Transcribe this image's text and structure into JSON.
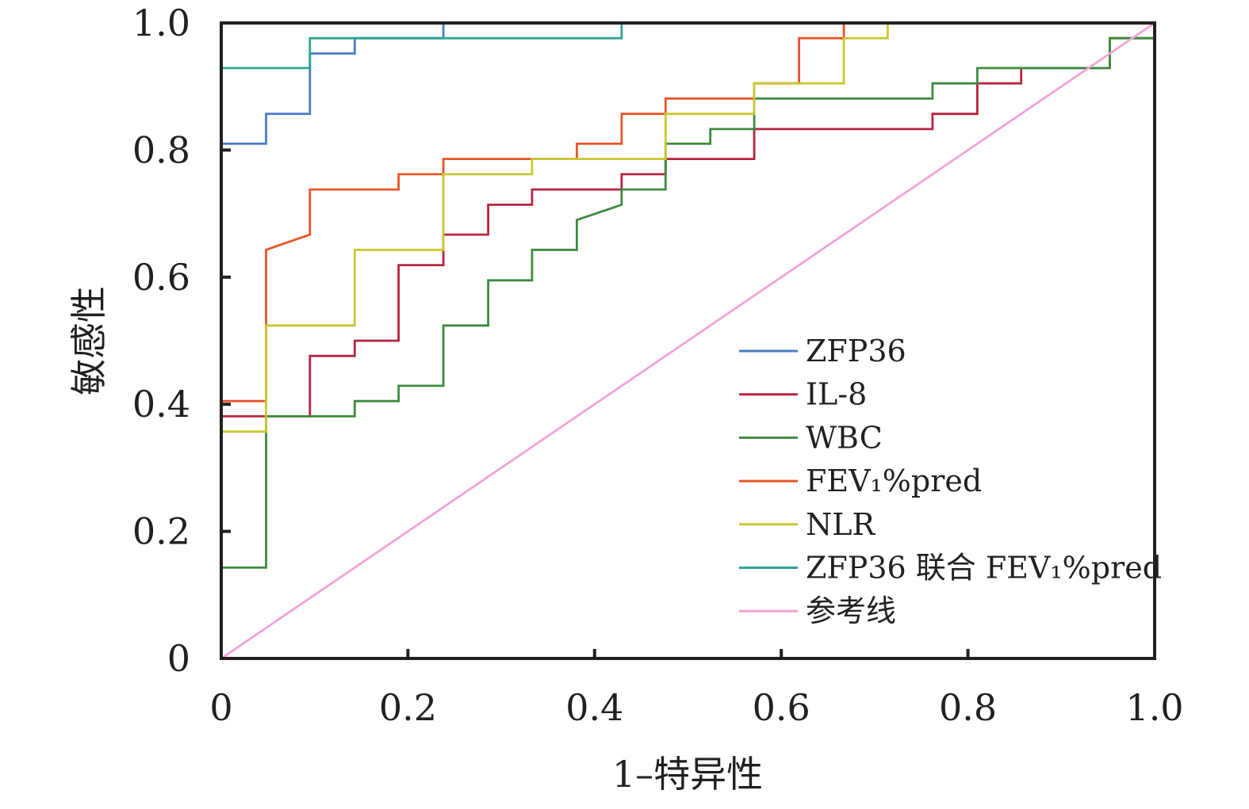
{
  "chart_data": {
    "type": "line",
    "title": "",
    "xlabel": "1–特异性",
    "ylabel": "敏感性",
    "xlim": [
      0,
      1
    ],
    "ylim": [
      0,
      1
    ],
    "x_ticks": [
      "0",
      "0.2",
      "0.4",
      "0.6",
      "0.8",
      "1.0"
    ],
    "y_ticks": [
      "0",
      "0.2",
      "0.4",
      "0.6",
      "0.8",
      "1.0"
    ],
    "grid": false,
    "legend_position": "bottom-right",
    "series": [
      {
        "name": "ZFP36",
        "color": "#4a7ec4",
        "points": [
          [
            0,
            0
          ],
          [
            0,
            0.81
          ],
          [
            0.048,
            0.81
          ],
          [
            0.048,
            0.857
          ],
          [
            0.095,
            0.857
          ],
          [
            0.095,
            0.952
          ],
          [
            0.143,
            0.952
          ],
          [
            0.143,
            0.976
          ],
          [
            0.238,
            0.976
          ],
          [
            0.238,
            1
          ],
          [
            1,
            1
          ]
        ]
      },
      {
        "name": "IL-8",
        "color": "#b5253f",
        "points": [
          [
            0,
            0
          ],
          [
            0,
            0.381
          ],
          [
            0.095,
            0.381
          ],
          [
            0.095,
            0.476
          ],
          [
            0.143,
            0.476
          ],
          [
            0.143,
            0.5
          ],
          [
            0.19,
            0.5
          ],
          [
            0.19,
            0.619
          ],
          [
            0.238,
            0.619
          ],
          [
            0.238,
            0.667
          ],
          [
            0.286,
            0.667
          ],
          [
            0.286,
            0.714
          ],
          [
            0.333,
            0.714
          ],
          [
            0.333,
            0.738
          ],
          [
            0.429,
            0.738
          ],
          [
            0.429,
            0.762
          ],
          [
            0.476,
            0.762
          ],
          [
            0.476,
            0.786
          ],
          [
            0.571,
            0.786
          ],
          [
            0.571,
            0.833
          ],
          [
            0.762,
            0.833
          ],
          [
            0.762,
            0.857
          ],
          [
            0.81,
            0.857
          ],
          [
            0.81,
            0.905
          ],
          [
            0.857,
            0.905
          ],
          [
            0.857,
            0.929
          ],
          [
            0.952,
            0.929
          ],
          [
            0.952,
            0.976
          ],
          [
            1,
            0.976
          ],
          [
            1,
            1
          ]
        ]
      },
      {
        "name": "WBC",
        "color": "#3d8b3d",
        "points": [
          [
            0,
            0
          ],
          [
            0,
            0.143
          ],
          [
            0.048,
            0.143
          ],
          [
            0.048,
            0.381
          ],
          [
            0.143,
            0.381
          ],
          [
            0.143,
            0.405
          ],
          [
            0.19,
            0.405
          ],
          [
            0.19,
            0.429
          ],
          [
            0.238,
            0.429
          ],
          [
            0.238,
            0.524
          ],
          [
            0.286,
            0.524
          ],
          [
            0.286,
            0.595
          ],
          [
            0.333,
            0.595
          ],
          [
            0.333,
            0.643
          ],
          [
            0.381,
            0.643
          ],
          [
            0.381,
            0.69
          ],
          [
            0.429,
            0.714
          ],
          [
            0.429,
            0.738
          ],
          [
            0.476,
            0.738
          ],
          [
            0.476,
            0.81
          ],
          [
            0.524,
            0.81
          ],
          [
            0.524,
            0.833
          ],
          [
            0.571,
            0.833
          ],
          [
            0.571,
            0.881
          ],
          [
            0.762,
            0.881
          ],
          [
            0.762,
            0.905
          ],
          [
            0.81,
            0.905
          ],
          [
            0.81,
            0.929
          ],
          [
            0.952,
            0.929
          ],
          [
            0.952,
            0.976
          ],
          [
            1,
            0.976
          ],
          [
            1,
            1
          ]
        ]
      },
      {
        "name": "FEV₁%pred",
        "color": "#e8562a",
        "points": [
          [
            0,
            0
          ],
          [
            0,
            0.405
          ],
          [
            0.048,
            0.405
          ],
          [
            0.048,
            0.643
          ],
          [
            0.095,
            0.667
          ],
          [
            0.095,
            0.738
          ],
          [
            0.19,
            0.738
          ],
          [
            0.19,
            0.762
          ],
          [
            0.238,
            0.762
          ],
          [
            0.238,
            0.786
          ],
          [
            0.381,
            0.786
          ],
          [
            0.381,
            0.81
          ],
          [
            0.429,
            0.81
          ],
          [
            0.429,
            0.857
          ],
          [
            0.476,
            0.857
          ],
          [
            0.476,
            0.881
          ],
          [
            0.571,
            0.881
          ],
          [
            0.571,
            0.905
          ],
          [
            0.619,
            0.905
          ],
          [
            0.619,
            0.976
          ],
          [
            0.667,
            0.976
          ],
          [
            0.667,
            1
          ],
          [
            1,
            1
          ]
        ]
      },
      {
        "name": "NLR",
        "color": "#c9c831",
        "points": [
          [
            0,
            0
          ],
          [
            0,
            0.357
          ],
          [
            0.048,
            0.357
          ],
          [
            0.048,
            0.524
          ],
          [
            0.143,
            0.524
          ],
          [
            0.143,
            0.643
          ],
          [
            0.238,
            0.643
          ],
          [
            0.238,
            0.762
          ],
          [
            0.333,
            0.762
          ],
          [
            0.333,
            0.786
          ],
          [
            0.476,
            0.786
          ],
          [
            0.476,
            0.857
          ],
          [
            0.571,
            0.857
          ],
          [
            0.571,
            0.905
          ],
          [
            0.667,
            0.905
          ],
          [
            0.667,
            0.976
          ],
          [
            0.714,
            0.976
          ],
          [
            0.714,
            1
          ],
          [
            1,
            1
          ]
        ]
      },
      {
        "name": "ZFP36 联合 FEV₁%pred",
        "color": "#2ea392",
        "points": [
          [
            0,
            0
          ],
          [
            0,
            0.929
          ],
          [
            0.095,
            0.929
          ],
          [
            0.095,
            0.976
          ],
          [
            0.429,
            0.976
          ],
          [
            0.429,
            1
          ],
          [
            1,
            1
          ]
        ]
      },
      {
        "name": "参考线",
        "color": "#f2a3d6",
        "points": [
          [
            0,
            0
          ],
          [
            1,
            1
          ]
        ]
      }
    ]
  }
}
